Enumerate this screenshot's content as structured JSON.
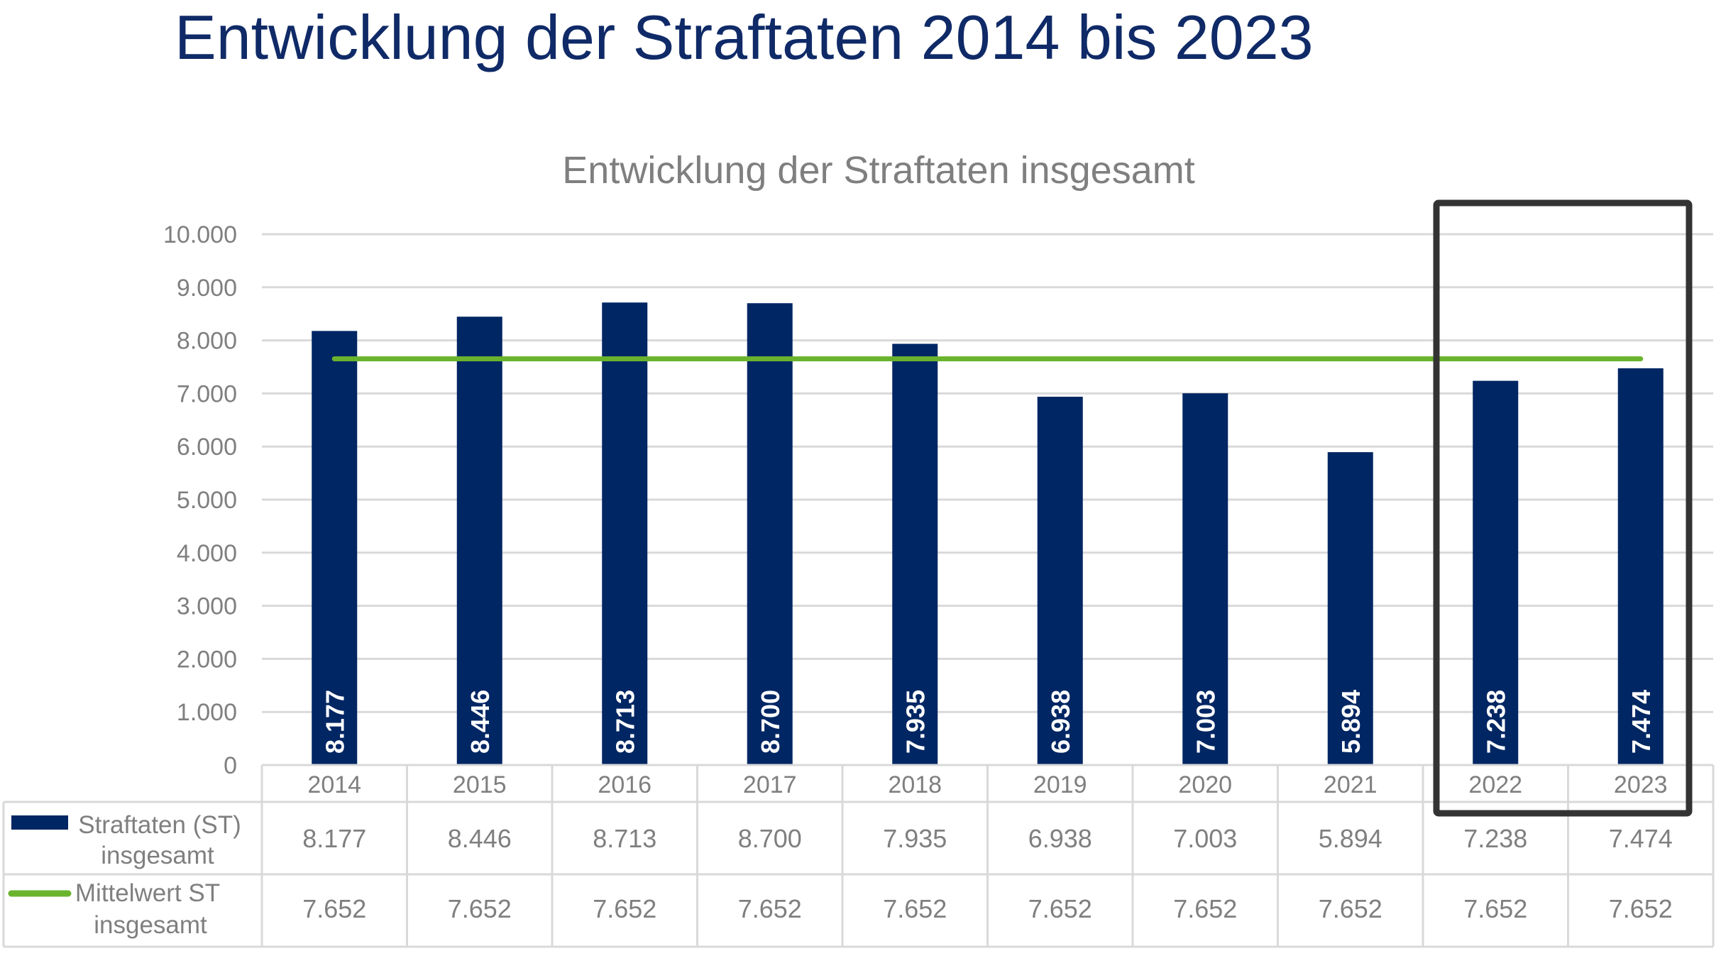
{
  "page": {
    "title": "Entwicklung der Straftaten 2014 bis 2023"
  },
  "chart_data": {
    "type": "bar",
    "title": "Entwicklung der Straftaten insgesamt",
    "xlabel": "",
    "ylabel": "",
    "ylim": [
      0,
      10000
    ],
    "y_ticks": [
      "0",
      "1.000",
      "2.000",
      "3.000",
      "4.000",
      "5.000",
      "6.000",
      "7.000",
      "8.000",
      "9.000",
      "10.000"
    ],
    "y_tick_values": [
      0,
      1000,
      2000,
      3000,
      4000,
      5000,
      6000,
      7000,
      8000,
      9000,
      10000
    ],
    "grid": true,
    "categories": [
      "2014",
      "2015",
      "2016",
      "2017",
      "2018",
      "2019",
      "2020",
      "2021",
      "2022",
      "2023"
    ],
    "series": [
      {
        "name": "Straftaten (ST) insgesamt",
        "name_lines": [
          "Straftaten (ST)",
          "insgesamt"
        ],
        "type": "bar",
        "color": "#002663",
        "values": [
          8177,
          8446,
          8713,
          8700,
          7935,
          6938,
          7003,
          5894,
          7238,
          7474
        ],
        "labels": [
          "8.177",
          "8.446",
          "8.713",
          "8.700",
          "7.935",
          "6.938",
          "7.003",
          "5.894",
          "7.238",
          "7.474"
        ]
      },
      {
        "name": "Mittelwert ST insgesamt",
        "name_lines": [
          "Mittelwert ST",
          "insgesamt"
        ],
        "type": "line",
        "color": "#6ab42d",
        "values": [
          7652,
          7652,
          7652,
          7652,
          7652,
          7652,
          7652,
          7652,
          7652,
          7652
        ],
        "labels": [
          "7.652",
          "7.652",
          "7.652",
          "7.652",
          "7.652",
          "7.652",
          "7.652",
          "7.652",
          "7.652",
          "7.652"
        ]
      }
    ],
    "legend": "data-table-below",
    "highlight": {
      "categories": [
        "2022",
        "2023"
      ],
      "color": "#333333"
    }
  }
}
